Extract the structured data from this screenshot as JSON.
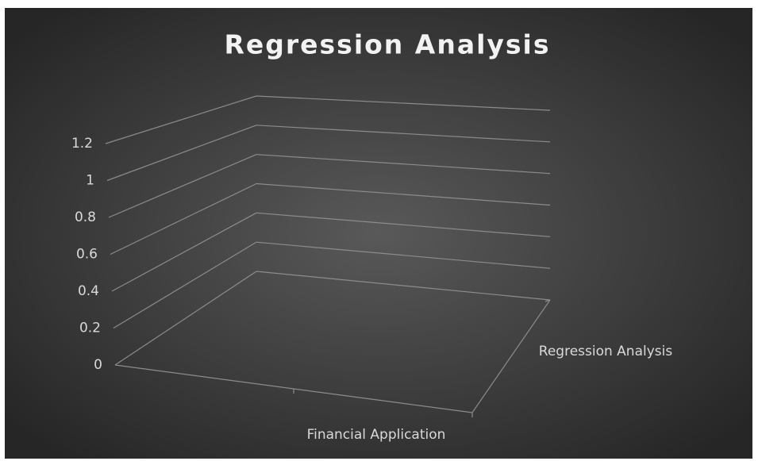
{
  "chart_data": {
    "type": "bar3d",
    "title": "Regression Analysis",
    "categories": [
      "Financial Application"
    ],
    "series": [
      {
        "name": "Regression Analysis",
        "values": [
          null
        ]
      }
    ],
    "ylim": [
      0,
      1.2
    ],
    "yticks": [
      0,
      0.2,
      0.4,
      0.6,
      0.8,
      1,
      1.2
    ],
    "grid": true
  }
}
